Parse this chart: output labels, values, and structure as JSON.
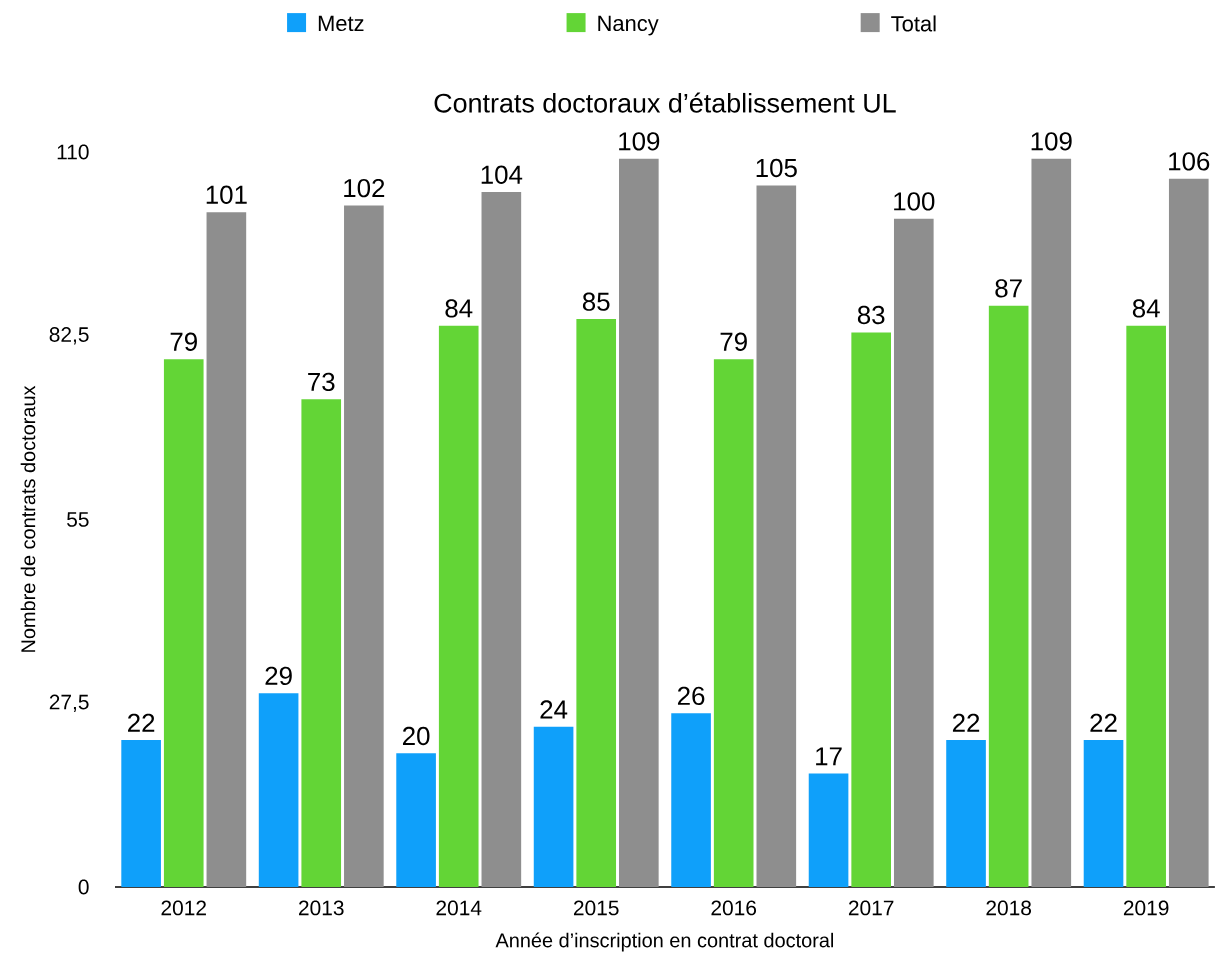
{
  "chart_data": {
    "type": "bar",
    "title": "Contrats doctoraux d’établissement UL",
    "xlabel": "Année d’inscription en contrat doctoral",
    "ylabel": "Nombre de contrats doctoraux",
    "categories": [
      "2012",
      "2013",
      "2014",
      "2015",
      "2016",
      "2017",
      "2018",
      "2019"
    ],
    "series": [
      {
        "name": "Metz",
        "color": "#0fa0fa",
        "values": [
          22,
          29,
          20,
          24,
          26,
          17,
          22,
          22
        ]
      },
      {
        "name": "Nancy",
        "color": "#63d536",
        "values": [
          79,
          73,
          84,
          85,
          79,
          83,
          87,
          84
        ]
      },
      {
        "name": "Total",
        "color": "#8e8e8e",
        "values": [
          101,
          102,
          104,
          109,
          105,
          100,
          109,
          106
        ]
      }
    ],
    "ylim": [
      0,
      110
    ],
    "yticks": [
      0,
      {
        "value": 27.5,
        "label": "27,5"
      },
      55,
      {
        "value": 82.5,
        "label": "82,5"
      },
      110
    ],
    "data_labels": true,
    "legend": "top",
    "grid": false
  }
}
